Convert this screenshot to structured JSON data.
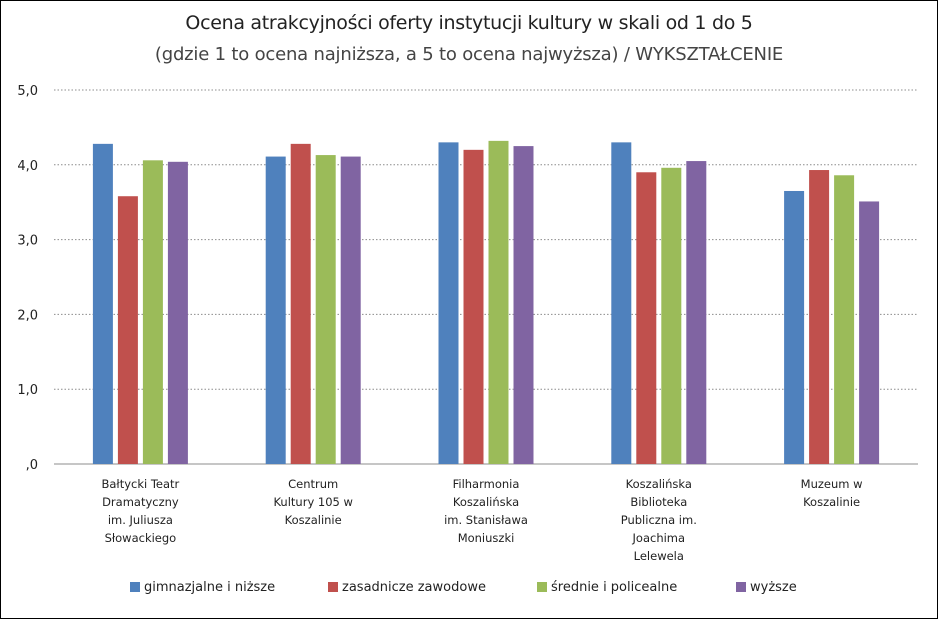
{
  "chart_data": {
    "type": "bar",
    "title": "Ocena atrakcyjności oferty instytucji kultury w skali od 1 do 5",
    "subtitle": "(gdzie 1 to ocena najniższa, a 5 to ocena najwyższa) / WYKSZTAŁCENIE",
    "xlabel": "",
    "ylabel": "",
    "ylim": [
      0,
      5
    ],
    "yticks": [
      0,
      1,
      2,
      3,
      4,
      5
    ],
    "ytick_labels": [
      ",0",
      "1,0",
      "2,0",
      "3,0",
      "4,0",
      "5,0"
    ],
    "grid": true,
    "legend_position": "bottom",
    "categories": [
      [
        "Bałtycki Teatr",
        "Dramatyczny",
        "im. Juliusza",
        "Słowackiego"
      ],
      [
        "Centrum",
        "Kultury 105 w",
        "Koszalinie"
      ],
      [
        "Filharmonia",
        "Koszalińska",
        "im. Stanisława",
        "Moniuszki"
      ],
      [
        "Koszalińska",
        "Biblioteka",
        "Publiczna im.",
        "Joachima",
        "Lelewela"
      ],
      [
        "Muzeum w",
        "Koszalinie"
      ]
    ],
    "series": [
      {
        "name": "gimnazjalne i niższe",
        "color": "#4f81bd",
        "values": [
          4.28,
          4.11,
          4.3,
          4.3,
          3.65
        ]
      },
      {
        "name": "zasadnicze zawodowe",
        "color": "#c0504d",
        "values": [
          3.58,
          4.28,
          4.2,
          3.9,
          3.93
        ]
      },
      {
        "name": "średnie i policealne",
        "color": "#9bbb59",
        "values": [
          4.06,
          4.13,
          4.32,
          3.96,
          3.86
        ]
      },
      {
        "name": "wyższe",
        "color": "#8064a2",
        "values": [
          4.04,
          4.11,
          4.25,
          4.05,
          3.51
        ]
      }
    ]
  }
}
